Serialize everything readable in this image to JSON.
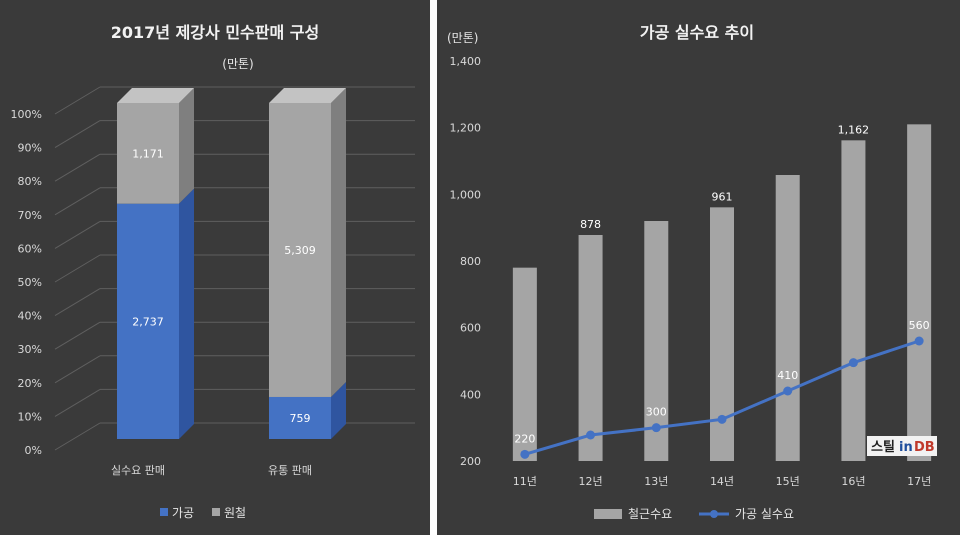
{
  "chart_data": [
    {
      "type": "bar",
      "stacked": "percent",
      "title": "2017년 제강사 민수판매 구성",
      "unit": "(만톤)",
      "categories": [
        "실수요 판매",
        "유통 판매"
      ],
      "series": [
        {
          "name": "가공",
          "values": [
            2737,
            759
          ],
          "labels": [
            "2,737",
            "759"
          ],
          "color": "#4472c4"
        },
        {
          "name": "원철",
          "values": [
            1171,
            5309
          ],
          "labels": [
            "1,171",
            "5,309"
          ],
          "color": "#a5a5a5"
        }
      ],
      "y_ticks": [
        "0%",
        "10%",
        "20%",
        "30%",
        "40%",
        "50%",
        "60%",
        "70%",
        "80%",
        "90%",
        "100%"
      ],
      "ylim": [
        0,
        100
      ],
      "grid": true,
      "legend": "bottom",
      "background": "#3a3a3a"
    },
    {
      "type": "bar+line",
      "title": "가공 실수요 추이",
      "unit": "(만톤)",
      "categories": [
        "11년",
        "12년",
        "13년",
        "14년",
        "15년",
        "16년",
        "17년"
      ],
      "series": [
        {
          "name": "철근수요",
          "type": "bar",
          "values": [
            780,
            878,
            920,
            961,
            1058,
            1162,
            1210
          ],
          "labels": [
            "",
            "878",
            "",
            "961",
            "",
            "1,162",
            ""
          ],
          "color": "#a5a5a5"
        },
        {
          "name": "가공 실수요",
          "type": "line",
          "values": [
            220,
            278,
            300,
            325,
            410,
            495,
            560
          ],
          "labels": [
            "220",
            "",
            "300",
            "",
            "410",
            "",
            "560"
          ],
          "color": "#4472c4"
        }
      ],
      "y_ticks": [
        "200",
        "400",
        "600",
        "800",
        "1,000",
        "1,200",
        "1,400"
      ],
      "ylim": [
        200,
        1400
      ],
      "grid": false,
      "legend": "bottom",
      "background": "#3a3a3a"
    }
  ],
  "watermark": {
    "text_a": "스틸",
    "text_b": "in",
    "text_c": "DB"
  }
}
